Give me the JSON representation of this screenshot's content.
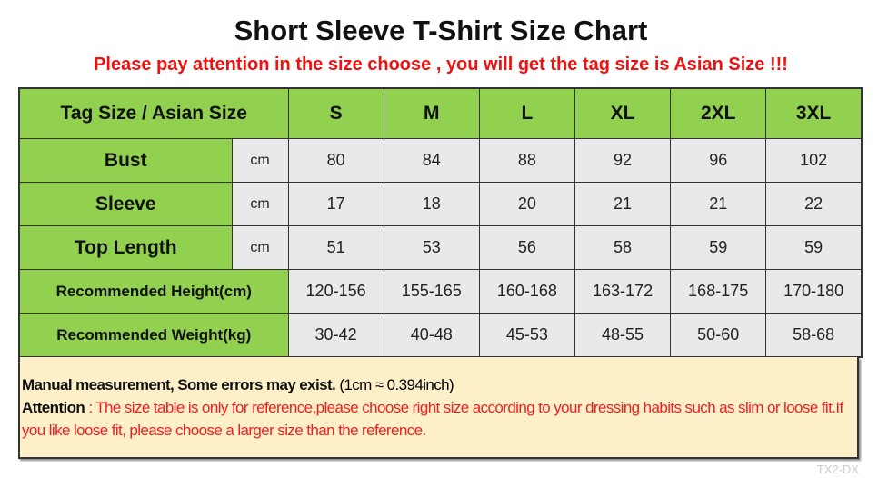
{
  "title": "Short Sleeve T-Shirt Size Chart",
  "subtitle": "Please pay attention in the size choose , you will get the tag size is Asian Size !!!",
  "table": {
    "header_label": "Tag Size / Asian Size",
    "sizes": [
      "S",
      "M",
      "L",
      "XL",
      "2XL",
      "3XL"
    ],
    "measurements": [
      {
        "label": "Bust",
        "unit": "cm",
        "values": [
          "80",
          "84",
          "88",
          "92",
          "96",
          "102"
        ]
      },
      {
        "label": "Sleeve",
        "unit": "cm",
        "values": [
          "17",
          "18",
          "20",
          "21",
          "21",
          "22"
        ]
      },
      {
        "label": "Top Length",
        "unit": "cm",
        "values": [
          "51",
          "53",
          "56",
          "58",
          "59",
          "59"
        ]
      }
    ],
    "recommendations": [
      {
        "label": "Recommended Height(cm)",
        "values": [
          "120-156",
          "155-165",
          "160-168",
          "163-172",
          "168-175",
          "170-180"
        ]
      },
      {
        "label": "Recommended Weight(kg)",
        "values": [
          "30-42",
          "40-48",
          "45-53",
          "48-55",
          "50-60",
          "58-68"
        ]
      }
    ]
  },
  "note": {
    "line1_bold": "Manual measurement, Some errors may exist.",
    "line1_conv": "(1cm ≈ 0.394inch)",
    "attention_label": "Attention",
    "attention_text": " : The size table is only for reference,please choose right size according to your dressing habits such as slim or loose fit.If you like loose fit, please choose a larger size than the reference."
  },
  "watermark": "TX2-DX",
  "colors": {
    "header_green": "#92d050",
    "cell_gray": "#e9e8ea",
    "note_bg": "#fdf0c9",
    "warning_red": "#f01010"
  }
}
